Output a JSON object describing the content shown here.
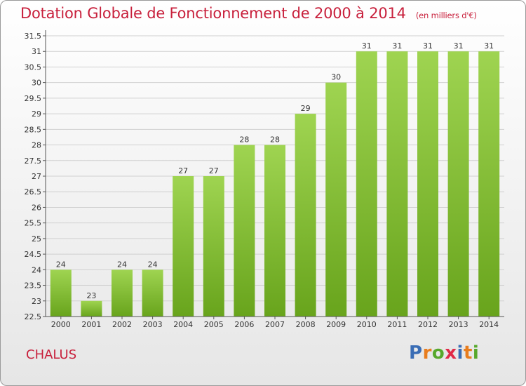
{
  "header": {
    "title": "Dotation Globale de Fonctionnement de 2000 à 2014",
    "subtitle": "(en milliers d'€)"
  },
  "footer": {
    "commune": "CHALUS",
    "logo_letters": [
      "P",
      "r",
      "o",
      "x",
      "i",
      "t",
      "i"
    ],
    "logo_colors": [
      "#3a6db5",
      "#e87d1e",
      "#57a82c",
      "#e02a48",
      "#3a6db5",
      "#e87d1e",
      "#57a82c"
    ]
  },
  "chart_data": {
    "type": "bar",
    "title": "Dotation Globale de Fonctionnement de 2000 à 2014",
    "subtitle": "(en milliers d'€)",
    "xlabel": "",
    "ylabel": "",
    "categories": [
      "2000",
      "2001",
      "2002",
      "2003",
      "2004",
      "2005",
      "2006",
      "2007",
      "2008",
      "2009",
      "2010",
      "2011",
      "2012",
      "2013",
      "2014"
    ],
    "values": [
      24,
      23,
      24,
      24,
      27,
      27,
      28,
      28,
      29,
      30,
      31,
      31,
      31,
      31,
      31
    ],
    "data_labels": [
      "24",
      "23",
      "24",
      "24",
      "27",
      "27",
      "28",
      "28",
      "29",
      "30",
      "31",
      "31",
      "31",
      "31",
      "31"
    ],
    "ylim": [
      22.5,
      31.5
    ],
    "yticks": [
      "22.5",
      "23",
      "23.5",
      "24",
      "24.5",
      "25",
      "25.5",
      "26",
      "26.5",
      "27",
      "27.5",
      "28",
      "28.5",
      "29",
      "29.5",
      "30",
      "30.5",
      "31",
      "31.5"
    ],
    "grid": true,
    "bar_color_top": "#9fd451",
    "bar_color_bottom": "#68a41c",
    "grid_color": "#d0d0d0"
  }
}
